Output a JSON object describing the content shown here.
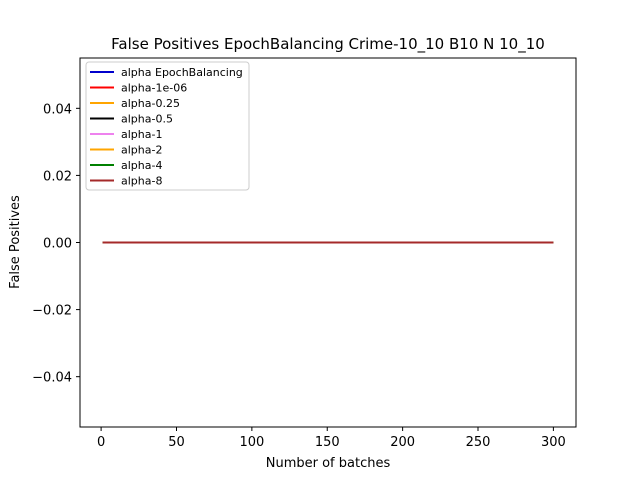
{
  "chart_data": {
    "type": "line",
    "title": "False Positives EpochBalancing Crime-10_10 B10 N 10_10",
    "xlabel": "Number of batches",
    "ylabel": "False Positives",
    "xlim": [
      -14,
      315
    ],
    "ylim": [
      -0.055,
      0.055
    ],
    "xticks": [
      "0",
      "50",
      "100",
      "150",
      "200",
      "250",
      "300"
    ],
    "xtick_values": [
      0,
      50,
      100,
      150,
      200,
      250,
      300
    ],
    "yticks": [
      "−0.04",
      "−0.02",
      "0.00",
      "0.02",
      "0.04"
    ],
    "ytick_values": [
      -0.04,
      -0.02,
      0,
      0.02,
      0.04
    ],
    "grid": false,
    "legend_position": "top-left",
    "x": [
      1,
      300
    ],
    "series": [
      {
        "name": "alpha EpochBalancing",
        "color": "#0000cc",
        "values": [
          0,
          0
        ]
      },
      {
        "name": "alpha-1e-06",
        "color": "#ff0000",
        "values": [
          0,
          0
        ]
      },
      {
        "name": "alpha-0.25",
        "color": "#ffa500",
        "values": [
          0,
          0
        ]
      },
      {
        "name": "alpha-0.5",
        "color": "#000000",
        "values": [
          0,
          0
        ]
      },
      {
        "name": "alpha-1",
        "color": "#ee82ee",
        "values": [
          0,
          0
        ]
      },
      {
        "name": "alpha-2",
        "color": "#ffa500",
        "values": [
          0,
          0
        ]
      },
      {
        "name": "alpha-4",
        "color": "#008000",
        "values": [
          0,
          0
        ]
      },
      {
        "name": "alpha-8",
        "color": "#a52a2a",
        "values": [
          0,
          0
        ]
      }
    ]
  }
}
